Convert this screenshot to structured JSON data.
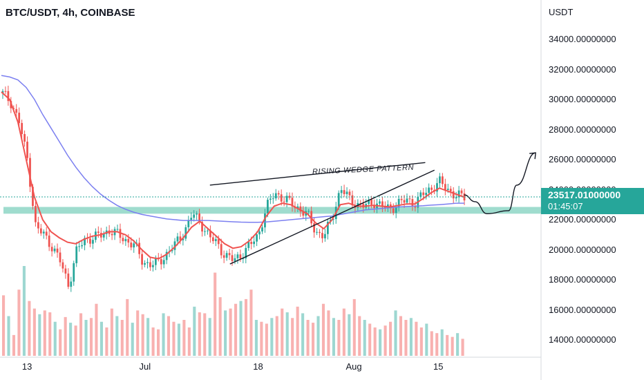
{
  "header": {
    "symbol_title": "BTC/USDT, 4h, COINBASE"
  },
  "price_axis": {
    "unit": "USDT"
  },
  "current_price": {
    "value": "23517.01000000",
    "countdown": "01:45:07"
  },
  "annotation": {
    "label": "RISING WEDGE PATTERN"
  },
  "colors": {
    "up": "#26a69a",
    "down": "#ef5350",
    "fast_ma": "#f05350",
    "slow_ma": "#7b7ff0",
    "support_zone": "#7fd0bd",
    "drawing": "#131722"
  },
  "chart_data": {
    "type": "line",
    "title": "BTC/USDT, 4h, COINBASE",
    "ylabel": "USDT",
    "ylim": [
      13000,
      35500
    ],
    "y_ticks": [
      "14000.00000000",
      "16000.00000000",
      "18000.00000000",
      "20000.00000000",
      "22000.00000000",
      "24000.00000000",
      "26000.00000000",
      "28000.00000000",
      "30000.00000000",
      "32000.00000000",
      "34000.00000000"
    ],
    "x_ticks": [
      "13",
      "Jul",
      "18",
      "Aug",
      "15"
    ],
    "series": [
      {
        "values": [
          30400,
          29800,
          28500,
          26000,
          21500,
          21000,
          20200,
          19200,
          17600,
          20000,
          20700,
          20800,
          21000,
          21300,
          21000,
          20600,
          20300,
          19200,
          19000,
          19200,
          19800,
          20400,
          21200,
          22400,
          21800,
          20900,
          20400,
          19600,
          19300,
          19700,
          20300,
          21000,
          22800,
          23800,
          23400,
          23100,
          22700,
          22300,
          21200,
          20900,
          22200,
          24100,
          23400,
          23000,
          22900,
          23200,
          22900,
          22700,
          23100,
          23300,
          23100,
          23700,
          24100,
          24500,
          24000,
          23600,
          23500
        ]
      },
      {
        "values": [
          30500,
          30000,
          28500,
          26000,
          23500,
          22000,
          21200,
          20800,
          20500,
          20400,
          20700,
          20900,
          21000,
          21200,
          21200,
          21000,
          20600,
          20000,
          19500,
          19400,
          19700,
          20200,
          20800,
          21500,
          21900,
          21400,
          20900,
          20400,
          20100,
          20200,
          20600,
          21200,
          22200,
          22900,
          23100,
          23000,
          22700,
          22400,
          21800,
          21400,
          22000,
          23000,
          23100,
          22900,
          22900,
          22950,
          22900,
          22850,
          22950,
          23050,
          23050,
          23400,
          23800,
          24100,
          23900,
          23700,
          23500
        ]
      },
      {
        "values": [
          31600,
          31500,
          31300,
          30800,
          30000,
          29000,
          28100,
          27200,
          26300,
          25500,
          24800,
          24200,
          23700,
          23300,
          22950,
          22700,
          22500,
          22350,
          22250,
          22150,
          22050,
          22000,
          21950,
          21950,
          21950,
          21950,
          21920,
          21890,
          21860,
          21840,
          21830,
          21830,
          21850,
          21900,
          21950,
          22000,
          22050,
          22100,
          22150,
          22200,
          22250,
          22350,
          22450,
          22550,
          22650,
          22700,
          22750,
          22800,
          22850,
          22880,
          22900,
          22930,
          22970,
          23000,
          23050,
          23100,
          23100
        ]
      }
    ],
    "volume_values": [
      64,
      42,
      22,
      70,
      95,
      58,
      50,
      44,
      48,
      46,
      36,
      28,
      41,
      35,
      32,
      45,
      38,
      40,
      55,
      36,
      30,
      50,
      42,
      38,
      60,
      35,
      48,
      44,
      40,
      30,
      28,
      45,
      42,
      36,
      34,
      38,
      30,
      52,
      46,
      45,
      40,
      88,
      62,
      48,
      50,
      55,
      58,
      60,
      70,
      38,
      36,
      34,
      40,
      42,
      50,
      46,
      40,
      52,
      45,
      38,
      35,
      42,
      55,
      48,
      40,
      38,
      50,
      44,
      60,
      42,
      38,
      34,
      30,
      28,
      32,
      36,
      48,
      42,
      38,
      40,
      36,
      30,
      34,
      26,
      24,
      28,
      22,
      20,
      24,
      18
    ],
    "support_zone": [
      22400,
      22850
    ],
    "wedge_upper": [
      [
        0.388,
        24300
      ],
      [
        0.786,
        25800
      ]
    ],
    "wedge_lower": [
      [
        0.425,
        19050
      ],
      [
        0.803,
        25300
      ]
    ],
    "projection": [
      [
        0.858,
        23650
      ],
      [
        0.878,
        23200
      ],
      [
        0.9,
        22400
      ],
      [
        0.94,
        22600
      ],
      [
        0.955,
        24300
      ],
      [
        0.99,
        26450
      ]
    ]
  }
}
